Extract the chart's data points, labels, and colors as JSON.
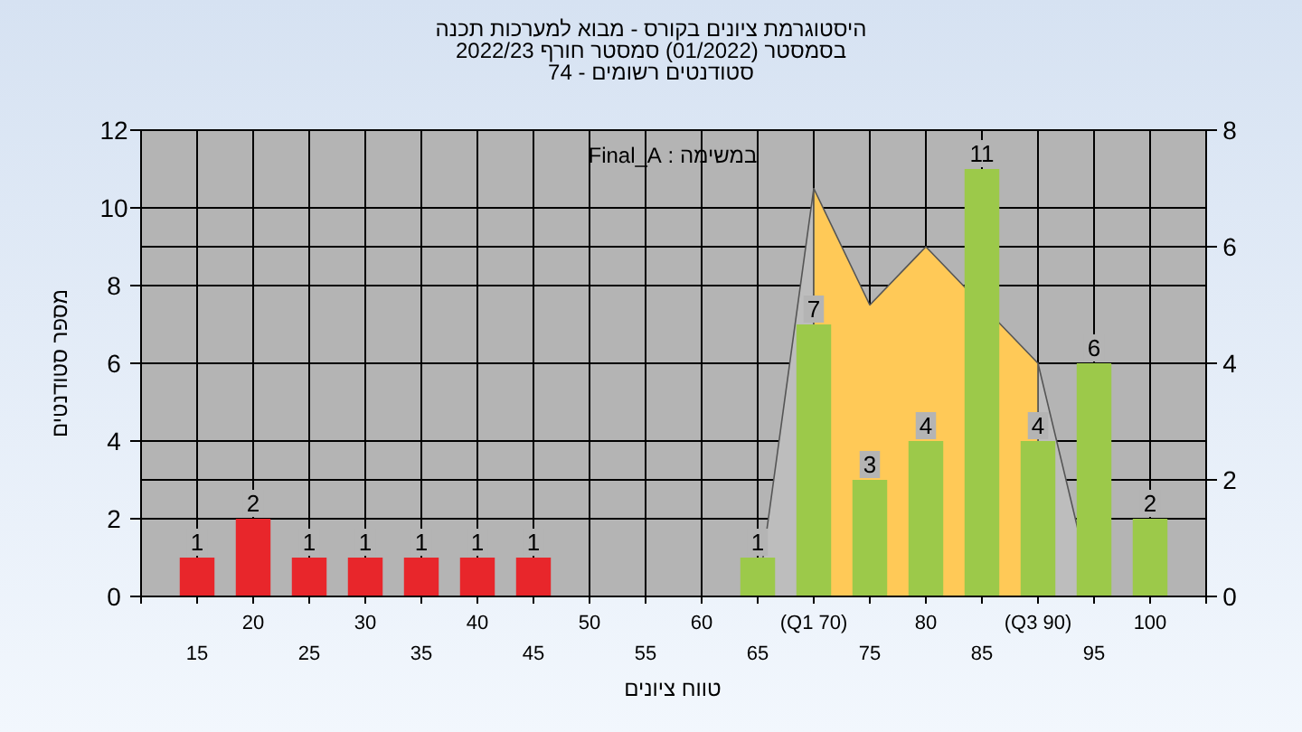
{
  "chart_data": {
    "type": "bar",
    "title": "היסטוגרמת ציונים בקורס - מבוא למערכות תכנה",
    "subtitle": "בסמסטר  (01/2022)  סמסטר חורף 2022/23\nסטודנטים רשומים - 74",
    "xlabel": "טווח ציונים",
    "ylabel": "מספר סטודנטים",
    "annotations": [
      "במשימה : Final_A"
    ],
    "categories": [
      "15",
      "20",
      "25",
      "30",
      "35",
      "40",
      "45",
      "50",
      "55",
      "60",
      "65",
      "(Q1 70)",
      "75",
      "80",
      "85",
      "(Q3 90)",
      "95",
      "100"
    ],
    "series": [
      {
        "type": "area",
        "axis": "y2",
        "color": "#bdbdbd",
        "values": [
          null,
          null,
          null,
          null,
          null,
          null,
          null,
          null,
          null,
          null,
          0,
          7,
          null,
          null,
          null,
          null,
          null,
          null
        ]
      },
      {
        "type": "area",
        "axis": "y2",
        "color": "#bdbdbd",
        "values": [
          null,
          null,
          null,
          null,
          null,
          null,
          null,
          null,
          null,
          null,
          null,
          null,
          null,
          null,
          null,
          4,
          0,
          null
        ]
      },
      {
        "type": "area",
        "axis": "y2",
        "color": "#ffc957",
        "values": [
          null,
          null,
          null,
          null,
          null,
          null,
          null,
          null,
          null,
          null,
          null,
          7,
          5,
          6,
          null,
          4,
          null,
          null
        ]
      },
      {
        "values": [
          1,
          2,
          1,
          1,
          1,
          1,
          1,
          0,
          0,
          0,
          1,
          7,
          3,
          4,
          11,
          4,
          6,
          2
        ],
        "colors": [
          "#e8262b",
          "#e8262b",
          "#e8262b",
          "#e8262b",
          "#e8262b",
          "#e8262b",
          "#e8262b",
          "#e8262b",
          "#e8262b",
          "#e8262b",
          "#9cc94a",
          "#9cc94a",
          "#9cc94a",
          "#9cc94a",
          "#9cc94a",
          "#9cc94a",
          "#9cc94a",
          "#9cc94a"
        ],
        "value_labels": [
          "1",
          "2",
          "1",
          "1",
          "1",
          "1",
          "1",
          null,
          null,
          null,
          "1",
          "7",
          "3",
          "4",
          "11",
          "4",
          "6",
          "2"
        ]
      }
    ],
    "ylim": [
      0,
      12
    ],
    "yticks": [
      0,
      2,
      4,
      6,
      8,
      10,
      12
    ],
    "y2lim": [
      0,
      8
    ],
    "y2ticks": [
      0,
      2,
      4,
      6,
      8
    ],
    "grid": true
  }
}
